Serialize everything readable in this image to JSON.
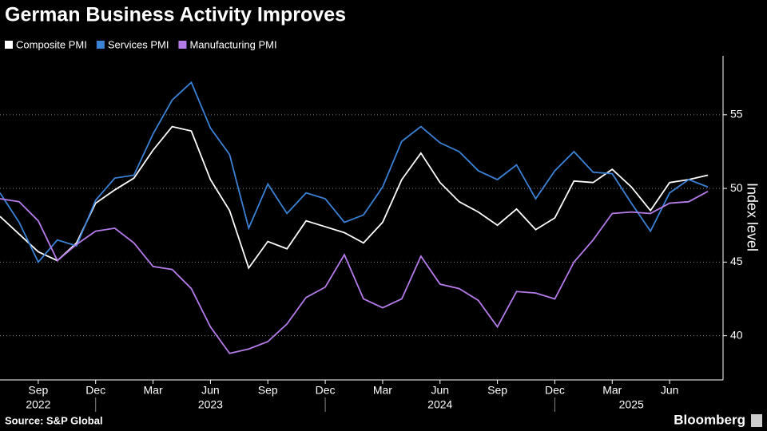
{
  "chart_data": {
    "type": "line",
    "title": "German Business Activity Improves",
    "y_label": "Index level",
    "source": "Source: S&P Global",
    "brand": "Bloomberg",
    "x": [
      "2022-07",
      "2022-08",
      "2022-09",
      "2022-10",
      "2022-11",
      "2022-12",
      "2023-01",
      "2023-02",
      "2023-03",
      "2023-04",
      "2023-05",
      "2023-06",
      "2023-07",
      "2023-08",
      "2023-09",
      "2023-10",
      "2023-11",
      "2023-12",
      "2024-01",
      "2024-02",
      "2024-03",
      "2024-04",
      "2024-05",
      "2024-06",
      "2024-07",
      "2024-08",
      "2024-09",
      "2024-10",
      "2024-11",
      "2024-12",
      "2025-01",
      "2025-02",
      "2025-03",
      "2025-04",
      "2025-05",
      "2025-06",
      "2025-07",
      "2025-08"
    ],
    "series": [
      {
        "name": "Composite PMI",
        "color": "#ffffff",
        "values": [
          48.1,
          46.9,
          45.7,
          45.1,
          46.3,
          49.0,
          49.9,
          50.7,
          52.6,
          54.2,
          53.9,
          50.6,
          48.5,
          44.6,
          46.4,
          45.9,
          47.8,
          47.4,
          47.0,
          46.3,
          47.7,
          50.6,
          52.4,
          50.4,
          49.1,
          48.4,
          47.5,
          48.6,
          47.2,
          48.0,
          50.5,
          50.4,
          51.3,
          50.1,
          48.5,
          50.4,
          50.6,
          50.9
        ]
      },
      {
        "name": "Services PMI",
        "color": "#3b82d6",
        "values": [
          49.7,
          47.7,
          45.0,
          46.5,
          46.1,
          49.2,
          50.7,
          50.9,
          53.7,
          56.0,
          57.2,
          54.1,
          52.3,
          47.3,
          50.3,
          48.3,
          49.7,
          49.3,
          47.7,
          48.2,
          50.1,
          53.2,
          54.2,
          53.1,
          52.5,
          51.2,
          50.6,
          51.6,
          49.3,
          51.2,
          52.5,
          51.1,
          51.0,
          49.0,
          47.1,
          49.7,
          50.6,
          50.1
        ]
      },
      {
        "name": "Manufacturing PMI",
        "color": "#b57be8",
        "values": [
          49.3,
          49.1,
          47.8,
          45.1,
          46.2,
          47.1,
          47.3,
          46.3,
          44.7,
          44.5,
          43.2,
          40.6,
          38.8,
          39.1,
          39.6,
          40.8,
          42.6,
          43.3,
          45.5,
          42.5,
          41.9,
          42.5,
          45.4,
          43.5,
          43.2,
          42.4,
          40.6,
          43.0,
          42.9,
          42.5,
          45.0,
          46.5,
          48.3,
          48.4,
          48.3,
          49.0,
          49.1,
          49.8
        ]
      }
    ],
    "ylim": [
      37,
      59
    ],
    "yticks": [
      40,
      45,
      50,
      55
    ],
    "xticks": [
      {
        "value": "2022-09",
        "label": "Sep"
      },
      {
        "value": "2022-12",
        "label": "Dec"
      },
      {
        "value": "2023-03",
        "label": "Mar"
      },
      {
        "value": "2023-06",
        "label": "Jun"
      },
      {
        "value": "2023-09",
        "label": "Sep"
      },
      {
        "value": "2023-12",
        "label": "Dec"
      },
      {
        "value": "2024-03",
        "label": "Mar"
      },
      {
        "value": "2024-06",
        "label": "Jun"
      },
      {
        "value": "2024-09",
        "label": "Sep"
      },
      {
        "value": "2024-12",
        "label": "Dec"
      },
      {
        "value": "2025-03",
        "label": "Mar"
      },
      {
        "value": "2025-06",
        "label": "Jun"
      }
    ],
    "year_labels": [
      {
        "value": "2022-09",
        "label": "2022"
      },
      {
        "value": "2023-06",
        "label": "2023"
      },
      {
        "value": "2024-06",
        "label": "2024"
      },
      {
        "value": "2025-04",
        "label": "2025"
      }
    ],
    "grid": true
  }
}
